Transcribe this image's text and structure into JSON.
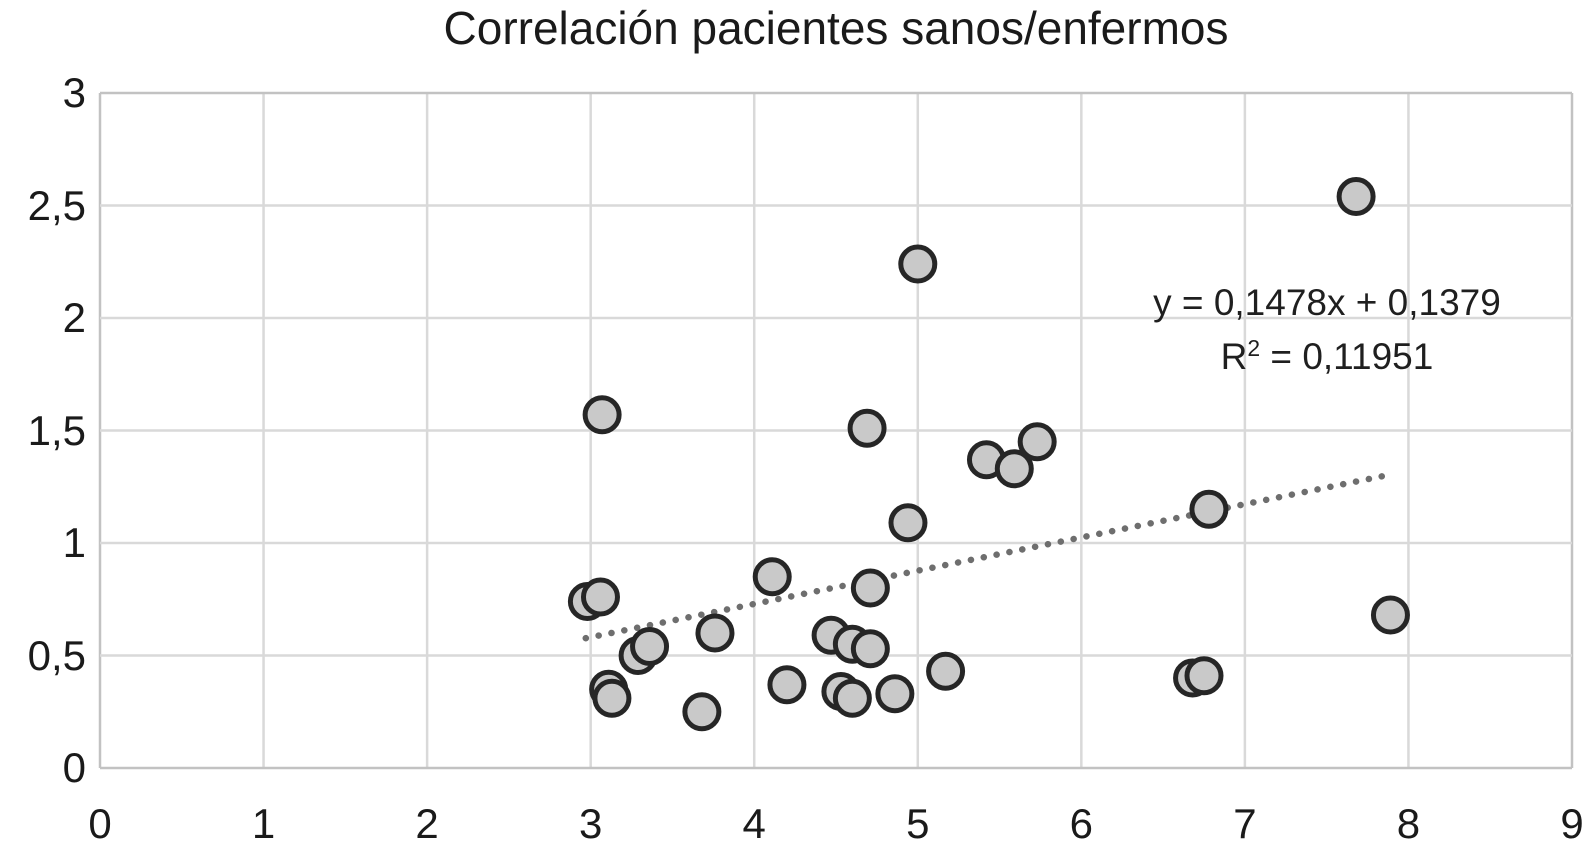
{
  "chart_data": {
    "type": "scatter",
    "title": "Correlación pacientes sanos/enfermos",
    "points": [
      [
        3.07,
        1.57
      ],
      [
        4.69,
        1.51
      ],
      [
        7.68,
        2.54
      ],
      [
        5.0,
        2.24
      ],
      [
        5.42,
        1.37
      ],
      [
        5.59,
        1.33
      ],
      [
        5.73,
        1.45
      ],
      [
        4.94,
        1.09
      ],
      [
        6.78,
        1.15
      ],
      [
        7.89,
        0.68
      ],
      [
        6.68,
        0.4
      ],
      [
        6.75,
        0.41
      ],
      [
        2.98,
        0.74
      ],
      [
        3.06,
        0.76
      ],
      [
        3.29,
        0.5
      ],
      [
        3.36,
        0.54
      ],
      [
        3.76,
        0.6
      ],
      [
        3.11,
        0.35
      ],
      [
        3.13,
        0.31
      ],
      [
        3.68,
        0.25
      ],
      [
        4.11,
        0.85
      ],
      [
        4.71,
        0.8
      ],
      [
        4.47,
        0.59
      ],
      [
        4.6,
        0.55
      ],
      [
        4.71,
        0.53
      ],
      [
        4.2,
        0.37
      ],
      [
        4.53,
        0.34
      ],
      [
        4.6,
        0.31
      ],
      [
        4.86,
        0.33
      ],
      [
        5.17,
        0.43
      ]
    ],
    "trendline": {
      "slope": 0.1478,
      "intercept": 0.1379,
      "x_start": 2.97,
      "x_end": 7.84,
      "style": "dotted"
    },
    "annotation": {
      "equation": "y = 0,1478x + 0,1379",
      "r_squared_base": "R",
      "r_squared_exponent": "2",
      "r_squared_value": " = 0,11951"
    },
    "x_axis": {
      "min": 0,
      "max": 9,
      "tick_step": 1,
      "tick_labels": [
        "0",
        "1",
        "2",
        "3",
        "4",
        "5",
        "6",
        "7",
        "8",
        "9"
      ]
    },
    "y_axis": {
      "min": 0,
      "max": 3,
      "tick_step": 0.5,
      "tick_labels": [
        "0",
        "0,5",
        "1",
        "1,5",
        "2",
        "2,5",
        "3"
      ]
    },
    "grid": true,
    "legend": "none",
    "colors": {
      "marker_fill": "#c9c9c9",
      "marker_stroke": "#262626",
      "trendline": "#6e6e6e",
      "gridline": "#d9d9d9",
      "axis_border": "#c2c2c2",
      "text": "#1a1a1a"
    }
  }
}
